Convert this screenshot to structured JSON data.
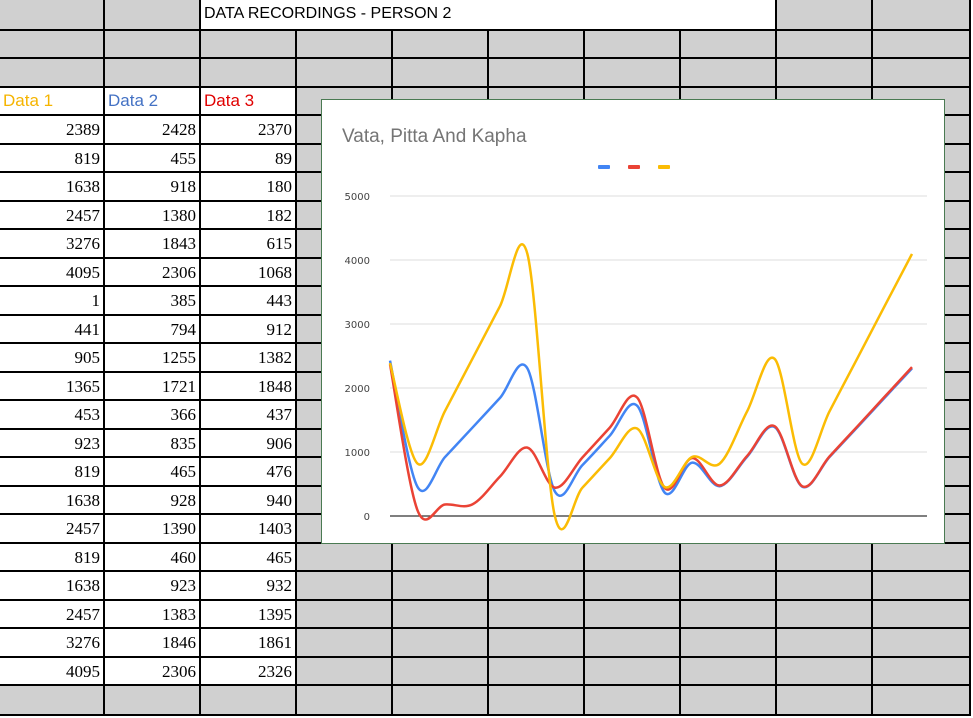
{
  "sheet": {
    "title": "DATA RECORDINGS - PERSON 2",
    "headers": [
      {
        "label": "Data 1",
        "color": "#f5b400"
      },
      {
        "label": "Data 2",
        "color": "#4472c4"
      },
      {
        "label": "Data 3",
        "color": "#e00000"
      }
    ],
    "rows": [
      [
        "2389",
        "2428",
        "2370"
      ],
      [
        "819",
        "455",
        "89"
      ],
      [
        "1638",
        "918",
        "180"
      ],
      [
        "2457",
        "1380",
        "182"
      ],
      [
        "3276",
        "1843",
        "615"
      ],
      [
        "4095",
        "2306",
        "1068"
      ],
      [
        "1",
        "385",
        "443"
      ],
      [
        "441",
        "794",
        "912"
      ],
      [
        "905",
        "1255",
        "1382"
      ],
      [
        "1365",
        "1721",
        "1848"
      ],
      [
        "453",
        "366",
        "437"
      ],
      [
        "923",
        "835",
        "906"
      ],
      [
        "819",
        "465",
        "476"
      ],
      [
        "1638",
        "928",
        "940"
      ],
      [
        "2457",
        "1390",
        "1403"
      ],
      [
        "819",
        "460",
        "465"
      ],
      [
        "1638",
        "923",
        "932"
      ],
      [
        "2457",
        "1383",
        "1395"
      ],
      [
        "3276",
        "1846",
        "1861"
      ],
      [
        "4095",
        "2306",
        "2326"
      ]
    ]
  },
  "chart_data": {
    "type": "line",
    "title": "Vata, Pitta And Kapha",
    "xlabel": "",
    "ylabel": "",
    "ylim": [
      0,
      5000
    ],
    "yticks": [
      0,
      1000,
      2000,
      3000,
      4000,
      5000
    ],
    "grid": true,
    "smooth": true,
    "legend": "top",
    "x": [
      1,
      2,
      3,
      4,
      5,
      6,
      7,
      8,
      9,
      10,
      11,
      12,
      13,
      14,
      15,
      16,
      17,
      18,
      19,
      20
    ],
    "series": [
      {
        "color": "#4285f4",
        "values": [
          2428,
          455,
          918,
          1380,
          1843,
          2306,
          385,
          794,
          1255,
          1721,
          366,
          835,
          465,
          928,
          1390,
          460,
          923,
          1383,
          1846,
          2306
        ]
      },
      {
        "color": "#ea4335",
        "values": [
          2370,
          89,
          180,
          182,
          615,
          1068,
          443,
          912,
          1382,
          1848,
          437,
          906,
          476,
          940,
          1403,
          465,
          932,
          1395,
          1861,
          2326
        ]
      },
      {
        "color": "#fbbc04",
        "values": [
          2389,
          819,
          1638,
          2457,
          3276,
          4095,
          1,
          441,
          905,
          1365,
          453,
          923,
          819,
          1638,
          2457,
          819,
          1638,
          2457,
          3276,
          4095
        ]
      }
    ]
  }
}
